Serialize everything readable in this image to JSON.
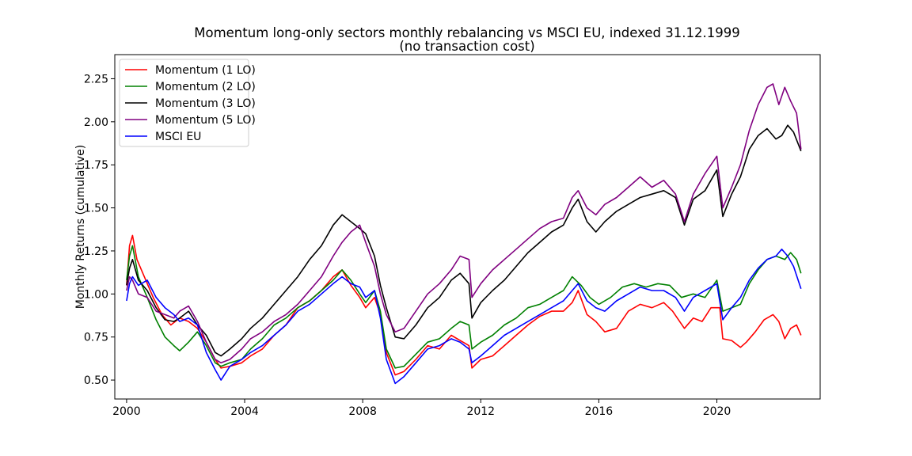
{
  "chart_data": {
    "type": "line",
    "title": "Momentum long-only sectors monthly rebalancing vs MSCI EU, indexed 31.12.1999",
    "subtitle": "(no transaction cost)",
    "xlabel": "",
    "ylabel": "Monthly Returns (cumulative)",
    "xlim": [
      1999.6,
      2023.5
    ],
    "ylim": [
      0.39,
      2.39
    ],
    "x_ticks": [
      {
        "value": 2000,
        "label": "2000"
      },
      {
        "value": 2004,
        "label": "2004"
      },
      {
        "value": 2008,
        "label": "2008"
      },
      {
        "value": 2012,
        "label": "2012"
      },
      {
        "value": 2016,
        "label": "2016"
      },
      {
        "value": 2020,
        "label": "2020"
      }
    ],
    "y_ticks": [
      {
        "value": 0.5,
        "label": "0.50"
      },
      {
        "value": 0.75,
        "label": "0.75"
      },
      {
        "value": 1.0,
        "label": "1.00"
      },
      {
        "value": 1.25,
        "label": "1.25"
      },
      {
        "value": 1.5,
        "label": "1.50"
      },
      {
        "value": 1.75,
        "label": "1.75"
      },
      {
        "value": 2.0,
        "label": "2.00"
      },
      {
        "value": 2.25,
        "label": "2.25"
      }
    ],
    "grid": false,
    "legend_position": "top-left",
    "series": [
      {
        "name": "Momentum (1 LO)",
        "color": "#ff0000",
        "x": [
          2000.0,
          2000.1,
          2000.2,
          2000.35,
          2000.6,
          2000.9,
          2001.2,
          2001.5,
          2001.8,
          2002.1,
          2002.4,
          2002.7,
          2003.0,
          2003.2,
          2003.5,
          2003.9,
          2004.2,
          2004.6,
          2005.0,
          2005.4,
          2005.8,
          2006.2,
          2006.6,
          2007.0,
          2007.3,
          2007.6,
          2007.9,
          2008.1,
          2008.4,
          2008.6,
          2008.8,
          2009.1,
          2009.4,
          2009.8,
          2010.2,
          2010.6,
          2011.0,
          2011.3,
          2011.6,
          2011.7,
          2012.0,
          2012.4,
          2012.8,
          2013.2,
          2013.6,
          2014.0,
          2014.4,
          2014.8,
          2015.1,
          2015.3,
          2015.6,
          2015.9,
          2016.2,
          2016.6,
          2017.0,
          2017.4,
          2017.8,
          2018.2,
          2018.5,
          2018.9,
          2019.2,
          2019.5,
          2019.8,
          2020.1,
          2020.2,
          2020.5,
          2020.8,
          2021.0,
          2021.3,
          2021.6,
          2021.9,
          2022.1,
          2022.3,
          2022.5,
          2022.7,
          2022.85
        ],
        "y": [
          1.05,
          1.28,
          1.34,
          1.2,
          1.1,
          0.98,
          0.88,
          0.82,
          0.86,
          0.84,
          0.8,
          0.72,
          0.62,
          0.57,
          0.58,
          0.6,
          0.64,
          0.68,
          0.76,
          0.82,
          0.92,
          0.96,
          1.02,
          1.1,
          1.14,
          1.05,
          0.98,
          0.92,
          0.98,
          0.88,
          0.66,
          0.53,
          0.55,
          0.62,
          0.7,
          0.68,
          0.76,
          0.73,
          0.7,
          0.57,
          0.62,
          0.64,
          0.7,
          0.76,
          0.82,
          0.87,
          0.9,
          0.9,
          0.95,
          1.02,
          0.88,
          0.84,
          0.78,
          0.8,
          0.9,
          0.94,
          0.92,
          0.95,
          0.9,
          0.8,
          0.86,
          0.84,
          0.92,
          0.92,
          0.74,
          0.73,
          0.69,
          0.72,
          0.78,
          0.85,
          0.88,
          0.84,
          0.74,
          0.8,
          0.82,
          0.76
        ]
      },
      {
        "name": "Momentum (2 LO)",
        "color": "#008000",
        "x": [
          2000.0,
          2000.1,
          2000.2,
          2000.4,
          2000.7,
          2001.0,
          2001.3,
          2001.6,
          2001.8,
          2002.1,
          2002.4,
          2002.7,
          2003.0,
          2003.2,
          2003.5,
          2003.9,
          2004.2,
          2004.6,
          2005.0,
          2005.4,
          2005.8,
          2006.2,
          2006.6,
          2007.0,
          2007.3,
          2007.6,
          2007.9,
          2008.1,
          2008.4,
          2008.6,
          2008.8,
          2009.1,
          2009.4,
          2009.8,
          2010.2,
          2010.6,
          2011.0,
          2011.3,
          2011.6,
          2011.7,
          2012.0,
          2012.4,
          2012.8,
          2013.2,
          2013.6,
          2014.0,
          2014.4,
          2014.8,
          2015.1,
          2015.4,
          2015.7,
          2016.0,
          2016.4,
          2016.8,
          2017.2,
          2017.6,
          2018.0,
          2018.4,
          2018.8,
          2019.2,
          2019.6,
          2020.0,
          2020.2,
          2020.5,
          2020.8,
          2021.1,
          2021.4,
          2021.7,
          2022.0,
          2022.3,
          2022.5,
          2022.7,
          2022.85
        ],
        "y": [
          1.08,
          1.22,
          1.28,
          1.1,
          0.98,
          0.85,
          0.75,
          0.7,
          0.67,
          0.72,
          0.78,
          0.7,
          0.6,
          0.58,
          0.6,
          0.62,
          0.68,
          0.74,
          0.82,
          0.86,
          0.92,
          0.96,
          1.02,
          1.08,
          1.14,
          1.08,
          1.0,
          0.95,
          1.02,
          0.9,
          0.68,
          0.57,
          0.58,
          0.65,
          0.72,
          0.74,
          0.8,
          0.84,
          0.82,
          0.68,
          0.72,
          0.76,
          0.82,
          0.86,
          0.92,
          0.94,
          0.98,
          1.02,
          1.1,
          1.05,
          0.98,
          0.94,
          0.98,
          1.04,
          1.06,
          1.04,
          1.06,
          1.05,
          0.98,
          1.0,
          0.98,
          1.08,
          0.9,
          0.92,
          0.94,
          1.06,
          1.14,
          1.2,
          1.22,
          1.2,
          1.24,
          1.2,
          1.12
        ]
      },
      {
        "name": "Momentum (3 LO)",
        "color": "#000000",
        "x": [
          2000.0,
          2000.1,
          2000.2,
          2000.4,
          2000.7,
          2001.0,
          2001.3,
          2001.6,
          2001.8,
          2002.1,
          2002.4,
          2002.7,
          2003.0,
          2003.2,
          2003.5,
          2003.9,
          2004.2,
          2004.6,
          2005.0,
          2005.4,
          2005.8,
          2006.2,
          2006.6,
          2007.0,
          2007.3,
          2007.6,
          2007.9,
          2008.1,
          2008.4,
          2008.6,
          2008.8,
          2009.1,
          2009.4,
          2009.8,
          2010.2,
          2010.6,
          2011.0,
          2011.3,
          2011.6,
          2011.7,
          2012.0,
          2012.4,
          2012.8,
          2013.2,
          2013.6,
          2014.0,
          2014.4,
          2014.8,
          2015.1,
          2015.3,
          2015.6,
          2015.9,
          2016.2,
          2016.6,
          2017.0,
          2017.4,
          2017.8,
          2018.2,
          2018.6,
          2018.9,
          2019.2,
          2019.6,
          2020.0,
          2020.2,
          2020.5,
          2020.8,
          2021.1,
          2021.4,
          2021.7,
          2022.0,
          2022.2,
          2022.4,
          2022.6,
          2022.85
        ],
        "y": [
          1.05,
          1.15,
          1.2,
          1.08,
          1.02,
          0.92,
          0.85,
          0.84,
          0.86,
          0.9,
          0.82,
          0.76,
          0.66,
          0.64,
          0.68,
          0.74,
          0.8,
          0.86,
          0.94,
          1.02,
          1.1,
          1.2,
          1.28,
          1.4,
          1.46,
          1.42,
          1.38,
          1.35,
          1.22,
          1.05,
          0.92,
          0.75,
          0.74,
          0.82,
          0.92,
          0.98,
          1.08,
          1.12,
          1.06,
          0.86,
          0.95,
          1.02,
          1.08,
          1.16,
          1.24,
          1.3,
          1.36,
          1.4,
          1.5,
          1.55,
          1.42,
          1.36,
          1.42,
          1.48,
          1.52,
          1.56,
          1.58,
          1.6,
          1.56,
          1.4,
          1.55,
          1.6,
          1.72,
          1.45,
          1.58,
          1.68,
          1.84,
          1.92,
          1.96,
          1.9,
          1.92,
          1.98,
          1.94,
          1.83
        ]
      },
      {
        "name": "Momentum (5 LO)",
        "color": "#800080",
        "x": [
          2000.0,
          2000.1,
          2000.2,
          2000.4,
          2000.7,
          2001.0,
          2001.3,
          2001.6,
          2001.8,
          2002.1,
          2002.4,
          2002.7,
          2003.0,
          2003.2,
          2003.5,
          2003.9,
          2004.2,
          2004.6,
          2005.0,
          2005.4,
          2005.8,
          2006.2,
          2006.6,
          2007.0,
          2007.3,
          2007.6,
          2007.9,
          2008.1,
          2008.4,
          2008.6,
          2008.8,
          2009.1,
          2009.4,
          2009.8,
          2010.2,
          2010.6,
          2011.0,
          2011.3,
          2011.6,
          2011.7,
          2012.0,
          2012.4,
          2012.8,
          2013.2,
          2013.6,
          2014.0,
          2014.4,
          2014.8,
          2015.1,
          2015.3,
          2015.6,
          2015.9,
          2016.2,
          2016.6,
          2017.0,
          2017.4,
          2017.8,
          2018.2,
          2018.6,
          2018.9,
          2019.2,
          2019.6,
          2020.0,
          2020.2,
          2020.5,
          2020.8,
          2021.1,
          2021.4,
          2021.7,
          2021.9,
          2022.1,
          2022.3,
          2022.5,
          2022.7,
          2022.85
        ],
        "y": [
          1.02,
          1.1,
          1.08,
          1.0,
          0.98,
          0.9,
          0.88,
          0.86,
          0.9,
          0.93,
          0.84,
          0.72,
          0.62,
          0.6,
          0.62,
          0.68,
          0.74,
          0.78,
          0.84,
          0.88,
          0.94,
          1.02,
          1.1,
          1.22,
          1.3,
          1.36,
          1.4,
          1.3,
          1.16,
          1.0,
          0.88,
          0.78,
          0.8,
          0.9,
          1.0,
          1.06,
          1.14,
          1.22,
          1.2,
          0.98,
          1.06,
          1.14,
          1.2,
          1.26,
          1.32,
          1.38,
          1.42,
          1.44,
          1.56,
          1.6,
          1.5,
          1.46,
          1.52,
          1.56,
          1.62,
          1.68,
          1.62,
          1.66,
          1.58,
          1.42,
          1.58,
          1.7,
          1.8,
          1.5,
          1.62,
          1.75,
          1.95,
          2.1,
          2.2,
          2.22,
          2.1,
          2.2,
          2.12,
          2.05,
          1.84
        ]
      },
      {
        "name": "MSCI EU",
        "color": "#0000ff",
        "x": [
          2000.0,
          2000.1,
          2000.2,
          2000.4,
          2000.7,
          2001.0,
          2001.3,
          2001.6,
          2001.8,
          2002.1,
          2002.4,
          2002.7,
          2003.0,
          2003.2,
          2003.5,
          2003.9,
          2004.2,
          2004.6,
          2005.0,
          2005.4,
          2005.8,
          2006.2,
          2006.6,
          2007.0,
          2007.3,
          2007.6,
          2007.9,
          2008.1,
          2008.4,
          2008.6,
          2008.8,
          2009.1,
          2009.4,
          2009.8,
          2010.2,
          2010.6,
          2011.0,
          2011.3,
          2011.6,
          2011.7,
          2012.0,
          2012.4,
          2012.8,
          2013.2,
          2013.6,
          2014.0,
          2014.4,
          2014.8,
          2015.1,
          2015.3,
          2015.6,
          2015.9,
          2016.2,
          2016.6,
          2017.0,
          2017.4,
          2017.8,
          2018.2,
          2018.6,
          2018.9,
          2019.2,
          2019.6,
          2020.0,
          2020.2,
          2020.5,
          2020.8,
          2021.1,
          2021.4,
          2021.7,
          2022.0,
          2022.2,
          2022.4,
          2022.6,
          2022.85
        ],
        "y": [
          0.96,
          1.06,
          1.1,
          1.05,
          1.08,
          0.98,
          0.92,
          0.88,
          0.84,
          0.86,
          0.82,
          0.66,
          0.56,
          0.5,
          0.58,
          0.62,
          0.66,
          0.7,
          0.76,
          0.82,
          0.9,
          0.94,
          1.0,
          1.06,
          1.1,
          1.06,
          1.04,
          0.98,
          1.02,
          0.86,
          0.62,
          0.48,
          0.52,
          0.6,
          0.68,
          0.7,
          0.74,
          0.72,
          0.68,
          0.6,
          0.64,
          0.7,
          0.76,
          0.8,
          0.84,
          0.88,
          0.92,
          0.96,
          1.02,
          1.06,
          0.96,
          0.92,
          0.9,
          0.96,
          1.0,
          1.04,
          1.02,
          1.02,
          0.98,
          0.9,
          0.98,
          1.02,
          1.06,
          0.85,
          0.92,
          0.98,
          1.08,
          1.15,
          1.2,
          1.22,
          1.26,
          1.22,
          1.16,
          1.03
        ]
      }
    ]
  }
}
